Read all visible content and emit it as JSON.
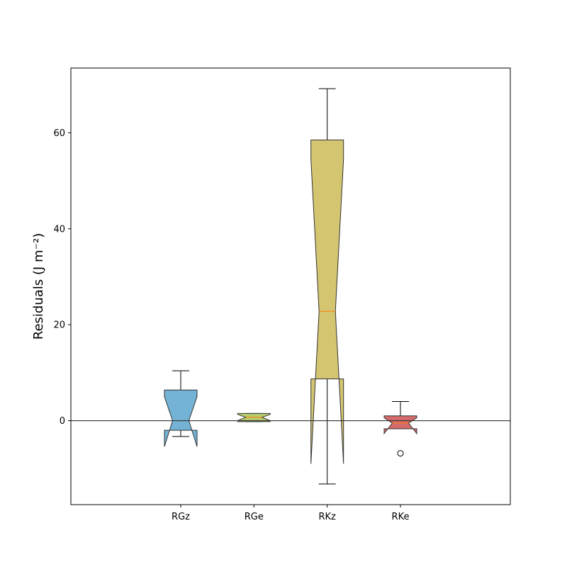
{
  "chart_data": {
    "type": "boxplot",
    "title": "",
    "xlabel": "",
    "ylabel": "Residuals (J m⁻²)",
    "ylim": [
      -17.5,
      73.5
    ],
    "yticks": [
      0,
      20,
      40,
      60
    ],
    "reference_line_y": 0,
    "categories": [
      "RGz",
      "RGe",
      "RKz",
      "RKe"
    ],
    "boxes": [
      {
        "label": "RGz",
        "color": "#74b3d5",
        "whisker_low": -3.3,
        "q1": -2.0,
        "median": 0.0,
        "q3": 6.4,
        "whisker_high": 10.4,
        "notch_low": -5.4,
        "notch_high": 5.0,
        "outliers": []
      },
      {
        "label": "RGe",
        "color": "#b5cc6b",
        "whisker_low": -0.2,
        "q1": -0.2,
        "median": 0.7,
        "q3": 1.5,
        "whisker_high": 1.5,
        "notch_low": 0.0,
        "notch_high": 1.3,
        "outliers": []
      },
      {
        "label": "RKz",
        "color": "#d4c571",
        "whisker_low": -13.2,
        "q1": 8.7,
        "median": 22.8,
        "q3": 58.5,
        "whisker_high": 69.2,
        "notch_low": -9.0,
        "notch_high": 54.5,
        "outliers": []
      },
      {
        "label": "RKe",
        "color": "#d46a6a",
        "whisker_low": -1.7,
        "q1": -1.7,
        "median": -0.5,
        "q3": 1.0,
        "whisker_high": 4.0,
        "notch_low": -2.7,
        "notch_high": 0.6,
        "outliers": [
          -6.8
        ]
      }
    ],
    "median_color": "#ff7f0e",
    "edge_color": "#333333"
  }
}
